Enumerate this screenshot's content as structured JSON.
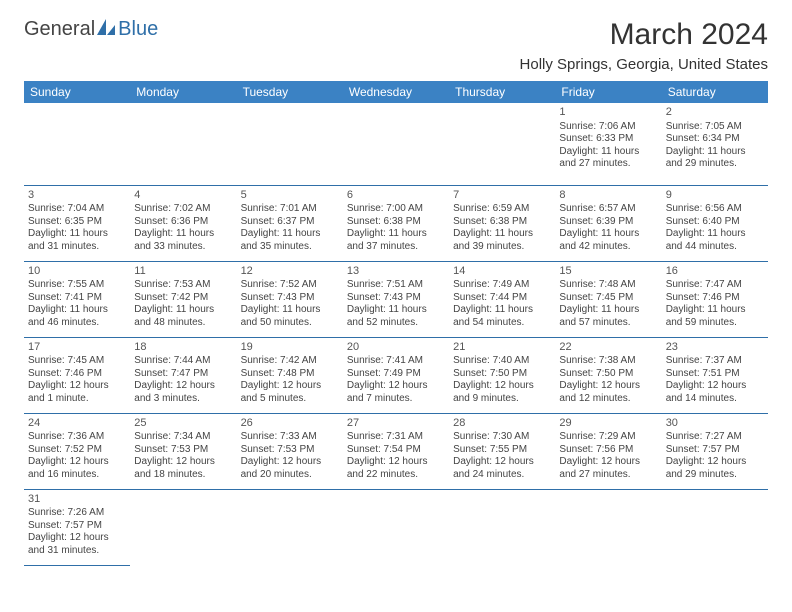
{
  "brand": {
    "part1": "General",
    "part2": "Blue"
  },
  "title": "March 2024",
  "location": "Holly Springs, Georgia, United States",
  "colors": {
    "header_bg": "#3b82c4",
    "header_text": "#ffffff",
    "grid_line": "#2f6fa8",
    "text": "#444444",
    "brand_gray": "#444444",
    "brand_blue": "#2f6fa8"
  },
  "day_headers": [
    "Sunday",
    "Monday",
    "Tuesday",
    "Wednesday",
    "Thursday",
    "Friday",
    "Saturday"
  ],
  "first_weekday_index": 5,
  "num_days": 31,
  "days": {
    "1": {
      "sunrise": "7:06 AM",
      "sunset": "6:33 PM",
      "daylight": "11 hours and 27 minutes."
    },
    "2": {
      "sunrise": "7:05 AM",
      "sunset": "6:34 PM",
      "daylight": "11 hours and 29 minutes."
    },
    "3": {
      "sunrise": "7:04 AM",
      "sunset": "6:35 PM",
      "daylight": "11 hours and 31 minutes."
    },
    "4": {
      "sunrise": "7:02 AM",
      "sunset": "6:36 PM",
      "daylight": "11 hours and 33 minutes."
    },
    "5": {
      "sunrise": "7:01 AM",
      "sunset": "6:37 PM",
      "daylight": "11 hours and 35 minutes."
    },
    "6": {
      "sunrise": "7:00 AM",
      "sunset": "6:38 PM",
      "daylight": "11 hours and 37 minutes."
    },
    "7": {
      "sunrise": "6:59 AM",
      "sunset": "6:38 PM",
      "daylight": "11 hours and 39 minutes."
    },
    "8": {
      "sunrise": "6:57 AM",
      "sunset": "6:39 PM",
      "daylight": "11 hours and 42 minutes."
    },
    "9": {
      "sunrise": "6:56 AM",
      "sunset": "6:40 PM",
      "daylight": "11 hours and 44 minutes."
    },
    "10": {
      "sunrise": "7:55 AM",
      "sunset": "7:41 PM",
      "daylight": "11 hours and 46 minutes."
    },
    "11": {
      "sunrise": "7:53 AM",
      "sunset": "7:42 PM",
      "daylight": "11 hours and 48 minutes."
    },
    "12": {
      "sunrise": "7:52 AM",
      "sunset": "7:43 PM",
      "daylight": "11 hours and 50 minutes."
    },
    "13": {
      "sunrise": "7:51 AM",
      "sunset": "7:43 PM",
      "daylight": "11 hours and 52 minutes."
    },
    "14": {
      "sunrise": "7:49 AM",
      "sunset": "7:44 PM",
      "daylight": "11 hours and 54 minutes."
    },
    "15": {
      "sunrise": "7:48 AM",
      "sunset": "7:45 PM",
      "daylight": "11 hours and 57 minutes."
    },
    "16": {
      "sunrise": "7:47 AM",
      "sunset": "7:46 PM",
      "daylight": "11 hours and 59 minutes."
    },
    "17": {
      "sunrise": "7:45 AM",
      "sunset": "7:46 PM",
      "daylight": "12 hours and 1 minute."
    },
    "18": {
      "sunrise": "7:44 AM",
      "sunset": "7:47 PM",
      "daylight": "12 hours and 3 minutes."
    },
    "19": {
      "sunrise": "7:42 AM",
      "sunset": "7:48 PM",
      "daylight": "12 hours and 5 minutes."
    },
    "20": {
      "sunrise": "7:41 AM",
      "sunset": "7:49 PM",
      "daylight": "12 hours and 7 minutes."
    },
    "21": {
      "sunrise": "7:40 AM",
      "sunset": "7:50 PM",
      "daylight": "12 hours and 9 minutes."
    },
    "22": {
      "sunrise": "7:38 AM",
      "sunset": "7:50 PM",
      "daylight": "12 hours and 12 minutes."
    },
    "23": {
      "sunrise": "7:37 AM",
      "sunset": "7:51 PM",
      "daylight": "12 hours and 14 minutes."
    },
    "24": {
      "sunrise": "7:36 AM",
      "sunset": "7:52 PM",
      "daylight": "12 hours and 16 minutes."
    },
    "25": {
      "sunrise": "7:34 AM",
      "sunset": "7:53 PM",
      "daylight": "12 hours and 18 minutes."
    },
    "26": {
      "sunrise": "7:33 AM",
      "sunset": "7:53 PM",
      "daylight": "12 hours and 20 minutes."
    },
    "27": {
      "sunrise": "7:31 AM",
      "sunset": "7:54 PM",
      "daylight": "12 hours and 22 minutes."
    },
    "28": {
      "sunrise": "7:30 AM",
      "sunset": "7:55 PM",
      "daylight": "12 hours and 24 minutes."
    },
    "29": {
      "sunrise": "7:29 AM",
      "sunset": "7:56 PM",
      "daylight": "12 hours and 27 minutes."
    },
    "30": {
      "sunrise": "7:27 AM",
      "sunset": "7:57 PM",
      "daylight": "12 hours and 29 minutes."
    },
    "31": {
      "sunrise": "7:26 AM",
      "sunset": "7:57 PM",
      "daylight": "12 hours and 31 minutes."
    }
  },
  "labels": {
    "sunrise": "Sunrise:",
    "sunset": "Sunset:",
    "daylight": "Daylight:"
  }
}
